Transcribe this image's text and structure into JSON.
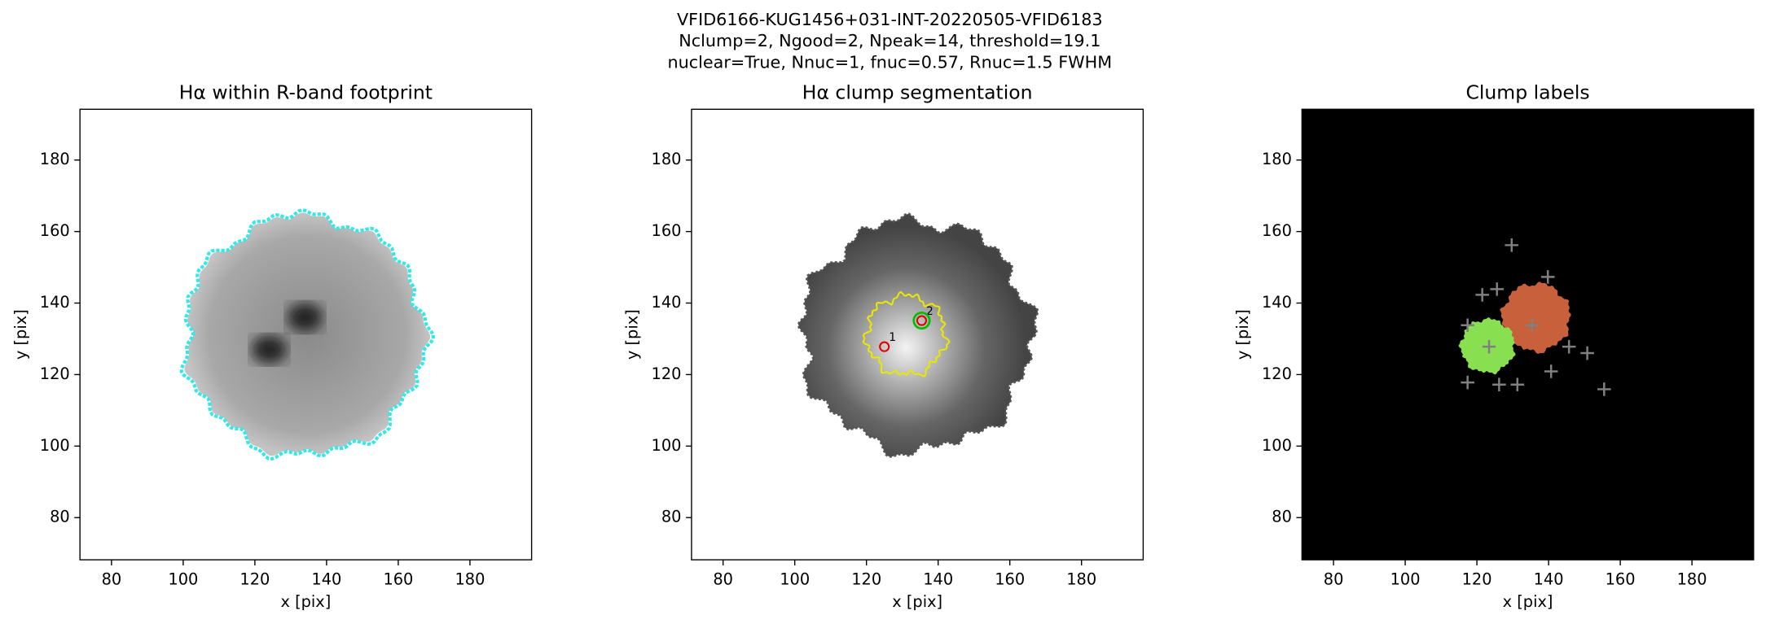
{
  "title": [
    "VFID6166-KUG1456+031-INT-20220505-VFID6183",
    "Nclump=2, Ngood=2, Npeak=14, threshold=19.1",
    "nuclear=True, Nnuc=1, fnuc=0.57, Rnuc=1.5 FWHM"
  ],
  "chart_data": [
    {
      "type": "image",
      "title": "Hα within R-band footprint",
      "xlabel": "x [pix]",
      "ylabel": "y [pix]",
      "xlim": [
        71.2,
        197.2
      ],
      "ylim": [
        68.2,
        194.2
      ],
      "xticks": [
        80,
        100,
        120,
        140,
        160,
        180
      ],
      "yticks": [
        80,
        100,
        120,
        140,
        160,
        180
      ],
      "contour_color": "#33e8e8"
    },
    {
      "type": "image",
      "title": "Hα clump segmentation",
      "xlabel": "x [pix]",
      "ylabel": "y [pix]",
      "xlim": [
        71.2,
        197.2
      ],
      "ylim": [
        68.2,
        194.2
      ],
      "xticks": [
        80,
        100,
        120,
        140,
        160,
        180
      ],
      "yticks": [
        80,
        100,
        120,
        140,
        160,
        180
      ],
      "contour_color": "#e8e800",
      "clumps": {
        "x": [
          125.0,
          135.4
        ],
        "y": [
          127.8,
          135.1
        ],
        "labels": [
          "1",
          "2"
        ],
        "color": "#e00000"
      },
      "nucleus": {
        "x": [
          135.4
        ],
        "y": [
          135.1
        ],
        "color": "#00c000"
      }
    },
    {
      "type": "image",
      "title": "Clump labels",
      "xlabel": "x [pix]",
      "ylabel": "y [pix]",
      "xlim": [
        71.2,
        197.2
      ],
      "ylim": [
        68.2,
        194.2
      ],
      "xticks": [
        80,
        100,
        120,
        140,
        160,
        180
      ],
      "yticks": [
        80,
        100,
        120,
        140,
        160,
        180
      ],
      "background": "#000000",
      "peaks": {
        "x": [
          129.7,
          139.8,
          121.5,
          125.6,
          117.4,
          135.4,
          123.4,
          145.7,
          150.8,
          140.7,
          117.4,
          126.2,
          131.3,
          155.5
        ],
        "y": [
          156.2,
          147.3,
          142.3,
          143.9,
          133.8,
          133.8,
          127.8,
          127.8,
          126.0,
          120.9,
          117.8,
          117.2,
          117.2,
          115.9
        ],
        "color": "#808080"
      }
    }
  ]
}
